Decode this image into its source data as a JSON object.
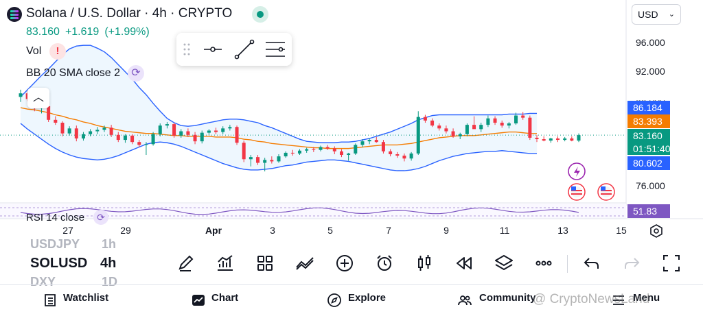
{
  "header": {
    "title": "Solana / U.S. Dollar · 4h · CRYPTO",
    "last_price": "83.160",
    "change": "+1.619",
    "change_pct": "(+1.99%)",
    "currency": "USD"
  },
  "indicators": {
    "vol_label": "Vol",
    "alert_glyph": "!",
    "bb_label": "BB 20 SMA close 2",
    "rsi_label": "RSI 14 close"
  },
  "price_axis": {
    "ticks": [
      {
        "label": "96.000",
        "value": 96
      },
      {
        "label": "92.000",
        "value": 92
      },
      {
        "label": "88.000",
        "value": 88
      },
      {
        "label": "76.000",
        "value": 76
      }
    ],
    "tags": [
      {
        "label": "86.184",
        "color": "#2962ff",
        "value": 86.184,
        "name": "bb-upper-tag"
      },
      {
        "label": "83.393",
        "color": "#f57c00",
        "value": 83.393,
        "name": "bb-basis-tag"
      },
      {
        "label": "83.160",
        "sub": "01:51:40",
        "color": "#089981",
        "value": 83.16,
        "name": "last-price-tag"
      },
      {
        "label": "80.602",
        "color": "#2962ff",
        "value": 80.602,
        "name": "bb-lower-tag"
      }
    ],
    "rsi_tag": {
      "label": "51.83",
      "color": "#7e57c2"
    }
  },
  "time_axis": [
    "27",
    "29",
    "Apr",
    "3",
    "5",
    "7",
    "9",
    "11",
    "13",
    "15"
  ],
  "chart_data": {
    "type": "candlestick",
    "title": "Solana / U.S. Dollar · 4h · CRYPTO",
    "ylim": [
      74,
      98
    ],
    "x_ticks": [
      "27",
      "29",
      "Apr",
      "3",
      "5",
      "7",
      "9",
      "11",
      "13",
      "15"
    ],
    "series": [
      {
        "name": "BB 20 SMA close 2 upper",
        "values": [
          88.5,
          89.5,
          90.5,
          91.5,
          92.4,
          93.4,
          94.4,
          95.2,
          95.6,
          95.7,
          95.7,
          95.3,
          94.8,
          94.0,
          93.0,
          92.0,
          91.0,
          89.8,
          88.8,
          87.6,
          86.5,
          85.5,
          84.9,
          84.5,
          84.4,
          84.5,
          84.7,
          84.9,
          85.1,
          85.3,
          85.4,
          85.4,
          85.3,
          85.1,
          84.9,
          84.5,
          84.2,
          83.8,
          83.4,
          83.0,
          82.6,
          82.3,
          82.2,
          82.1,
          82.1,
          82.1,
          82.2,
          82.2,
          82.3,
          82.5,
          82.7,
          83.0,
          83.3,
          83.6,
          84.0,
          84.4,
          84.8,
          85.3,
          85.6,
          85.9,
          86.0,
          86.0,
          86.0,
          86.0,
          86.0,
          86.0,
          86.0,
          86.0,
          86.0,
          86.0,
          86.1,
          86.1,
          86.1,
          86.2,
          86.2
        ]
      },
      {
        "name": "BB 20 SMA close 2 basis",
        "values": [
          87.0,
          86.8,
          86.7,
          86.5,
          86.3,
          86.0,
          85.8,
          85.5,
          85.3,
          85.0,
          84.8,
          84.5,
          84.3,
          84.1,
          83.9,
          83.7,
          83.6,
          83.5,
          83.4,
          83.4,
          83.3,
          83.2,
          83.1,
          83.1,
          83.0,
          83.0,
          83.0,
          83.0,
          82.9,
          82.9,
          82.9,
          82.8,
          82.6,
          82.5,
          82.3,
          82.2,
          82.0,
          81.9,
          81.8,
          81.7,
          81.6,
          81.5,
          81.4,
          81.4,
          81.3,
          81.3,
          81.3,
          81.3,
          81.4,
          81.5,
          81.6,
          81.7,
          81.8,
          81.8,
          81.8,
          81.9,
          82.0,
          82.2,
          82.4,
          82.6,
          82.8,
          82.9,
          83.0,
          83.1,
          83.1,
          83.1,
          83.2,
          83.3,
          83.4,
          83.5,
          83.6,
          83.6,
          83.5,
          83.4,
          83.39
        ]
      },
      {
        "name": "BB 20 SMA close 2 lower",
        "values": [
          84.8,
          84.0,
          83.3,
          82.6,
          81.9,
          81.3,
          80.8,
          80.4,
          80.1,
          79.9,
          79.8,
          79.7,
          79.8,
          80.0,
          80.3,
          80.7,
          81.1,
          81.5,
          81.9,
          82.1,
          82.2,
          82.1,
          81.9,
          81.6,
          81.2,
          80.8,
          80.4,
          80.0,
          79.6,
          79.2,
          78.9,
          78.6,
          78.4,
          78.3,
          78.3,
          78.4,
          78.5,
          78.7,
          78.9,
          79.0,
          79.2,
          79.4,
          79.5,
          79.6,
          79.7,
          79.7,
          79.6,
          79.5,
          79.3,
          79.1,
          78.9,
          78.7,
          78.5,
          78.3,
          78.2,
          78.2,
          78.3,
          78.5,
          78.8,
          79.2,
          79.6,
          79.9,
          80.2,
          80.4,
          80.6,
          80.7,
          80.8,
          80.9,
          80.9,
          81.0,
          80.9,
          80.8,
          80.7,
          80.6,
          80.6
        ]
      }
    ],
    "candles": [
      {
        "o": 88.5,
        "h": 89.5,
        "l": 87.8,
        "c": 89.0
      },
      {
        "o": 89.0,
        "h": 89.3,
        "l": 87.9,
        "c": 88.2
      },
      {
        "o": 88.2,
        "h": 88.6,
        "l": 86.5,
        "c": 86.9
      },
      {
        "o": 86.9,
        "h": 87.5,
        "l": 86.2,
        "c": 87.2
      },
      {
        "o": 87.2,
        "h": 87.6,
        "l": 85.0,
        "c": 85.3
      },
      {
        "o": 85.3,
        "h": 85.8,
        "l": 84.6,
        "c": 84.9
      },
      {
        "o": 84.9,
        "h": 85.1,
        "l": 83.0,
        "c": 83.4
      },
      {
        "o": 83.4,
        "h": 84.4,
        "l": 83.1,
        "c": 84.1
      },
      {
        "o": 84.1,
        "h": 84.5,
        "l": 82.3,
        "c": 82.7
      },
      {
        "o": 82.7,
        "h": 83.6,
        "l": 82.4,
        "c": 83.3
      },
      {
        "o": 83.3,
        "h": 84.0,
        "l": 83.0,
        "c": 83.7
      },
      {
        "o": 83.7,
        "h": 84.3,
        "l": 83.3,
        "c": 83.9
      },
      {
        "o": 83.9,
        "h": 84.5,
        "l": 83.6,
        "c": 84.2
      },
      {
        "o": 84.2,
        "h": 84.6,
        "l": 82.9,
        "c": 83.2
      },
      {
        "o": 83.2,
        "h": 83.6,
        "l": 82.2,
        "c": 82.5
      },
      {
        "o": 82.5,
        "h": 83.3,
        "l": 82.1,
        "c": 83.1
      },
      {
        "o": 83.1,
        "h": 83.3,
        "l": 81.9,
        "c": 82.2
      },
      {
        "o": 82.2,
        "h": 82.5,
        "l": 81.5,
        "c": 81.8
      },
      {
        "o": 81.8,
        "h": 82.2,
        "l": 80.4,
        "c": 81.9
      },
      {
        "o": 81.9,
        "h": 83.6,
        "l": 81.7,
        "c": 83.3
      },
      {
        "o": 83.3,
        "h": 84.8,
        "l": 83.0,
        "c": 84.5
      },
      {
        "o": 84.5,
        "h": 85.0,
        "l": 84.1,
        "c": 84.7
      },
      {
        "o": 84.7,
        "h": 84.9,
        "l": 82.8,
        "c": 83.1
      },
      {
        "o": 83.1,
        "h": 84.0,
        "l": 82.8,
        "c": 83.7
      },
      {
        "o": 83.7,
        "h": 84.1,
        "l": 82.9,
        "c": 83.2
      },
      {
        "o": 83.2,
        "h": 83.6,
        "l": 81.9,
        "c": 82.3
      },
      {
        "o": 82.3,
        "h": 83.8,
        "l": 82.0,
        "c": 83.5
      },
      {
        "o": 83.5,
        "h": 84.0,
        "l": 83.2,
        "c": 83.8
      },
      {
        "o": 83.8,
        "h": 84.2,
        "l": 83.3,
        "c": 83.6
      },
      {
        "o": 83.6,
        "h": 84.4,
        "l": 83.3,
        "c": 84.1
      },
      {
        "o": 84.1,
        "h": 84.6,
        "l": 83.8,
        "c": 84.3
      },
      {
        "o": 84.3,
        "h": 84.5,
        "l": 81.8,
        "c": 82.1
      },
      {
        "o": 82.1,
        "h": 82.4,
        "l": 79.4,
        "c": 79.8
      },
      {
        "o": 79.8,
        "h": 80.4,
        "l": 78.8,
        "c": 80.1
      },
      {
        "o": 80.1,
        "h": 80.4,
        "l": 79.0,
        "c": 79.3
      },
      {
        "o": 79.3,
        "h": 80.0,
        "l": 78.1,
        "c": 79.7
      },
      {
        "o": 79.7,
        "h": 80.2,
        "l": 79.2,
        "c": 79.5
      },
      {
        "o": 79.5,
        "h": 80.5,
        "l": 79.3,
        "c": 80.2
      },
      {
        "o": 80.2,
        "h": 80.9,
        "l": 80.0,
        "c": 80.7
      },
      {
        "o": 80.7,
        "h": 81.1,
        "l": 80.3,
        "c": 80.6
      },
      {
        "o": 80.6,
        "h": 81.2,
        "l": 80.4,
        "c": 81.0
      },
      {
        "o": 81.0,
        "h": 81.4,
        "l": 80.7,
        "c": 81.2
      },
      {
        "o": 81.2,
        "h": 81.5,
        "l": 80.8,
        "c": 81.1
      },
      {
        "o": 81.1,
        "h": 81.7,
        "l": 80.9,
        "c": 81.5
      },
      {
        "o": 81.5,
        "h": 81.8,
        "l": 81.1,
        "c": 81.3
      },
      {
        "o": 81.3,
        "h": 81.6,
        "l": 80.5,
        "c": 80.9
      },
      {
        "o": 80.9,
        "h": 81.2,
        "l": 80.1,
        "c": 80.4
      },
      {
        "o": 80.4,
        "h": 80.7,
        "l": 79.6,
        "c": 80.6
      },
      {
        "o": 80.6,
        "h": 82.0,
        "l": 80.4,
        "c": 81.8
      },
      {
        "o": 81.8,
        "h": 82.6,
        "l": 81.5,
        "c": 82.3
      },
      {
        "o": 82.3,
        "h": 82.7,
        "l": 81.9,
        "c": 82.5
      },
      {
        "o": 82.5,
        "h": 82.9,
        "l": 82.1,
        "c": 82.2
      },
      {
        "o": 82.2,
        "h": 82.5,
        "l": 80.6,
        "c": 80.9
      },
      {
        "o": 80.9,
        "h": 81.2,
        "l": 80.2,
        "c": 80.5
      },
      {
        "o": 80.5,
        "h": 80.8,
        "l": 80.0,
        "c": 80.3
      },
      {
        "o": 80.3,
        "h": 80.6,
        "l": 79.5,
        "c": 79.9
      },
      {
        "o": 79.9,
        "h": 80.8,
        "l": 79.6,
        "c": 80.6
      },
      {
        "o": 80.6,
        "h": 86.5,
        "l": 80.4,
        "c": 85.7
      },
      {
        "o": 85.7,
        "h": 86.0,
        "l": 84.9,
        "c": 85.2
      },
      {
        "o": 85.2,
        "h": 85.5,
        "l": 84.3,
        "c": 84.5
      },
      {
        "o": 84.5,
        "h": 84.8,
        "l": 83.8,
        "c": 84.1
      },
      {
        "o": 84.1,
        "h": 84.5,
        "l": 83.4,
        "c": 83.7
      },
      {
        "o": 83.7,
        "h": 84.1,
        "l": 82.8,
        "c": 83.0
      },
      {
        "o": 83.0,
        "h": 83.5,
        "l": 82.6,
        "c": 83.3
      },
      {
        "o": 83.3,
        "h": 84.8,
        "l": 83.0,
        "c": 84.6
      },
      {
        "o": 84.6,
        "h": 85.8,
        "l": 84.2,
        "c": 84.0
      },
      {
        "o": 84.0,
        "h": 84.9,
        "l": 83.6,
        "c": 84.6
      },
      {
        "o": 84.6,
        "h": 85.9,
        "l": 84.3,
        "c": 85.5
      },
      {
        "o": 85.5,
        "h": 85.8,
        "l": 84.6,
        "c": 84.9
      },
      {
        "o": 84.9,
        "h": 85.2,
        "l": 84.2,
        "c": 84.5
      },
      {
        "o": 84.5,
        "h": 85.0,
        "l": 84.1,
        "c": 84.8
      },
      {
        "o": 84.8,
        "h": 86.3,
        "l": 84.6,
        "c": 85.9
      },
      {
        "o": 85.9,
        "h": 86.4,
        "l": 85.3,
        "c": 85.6
      },
      {
        "o": 85.6,
        "h": 85.9,
        "l": 82.5,
        "c": 82.8
      },
      {
        "o": 82.8,
        "h": 83.2,
        "l": 82.2,
        "c": 82.6
      },
      {
        "o": 82.6,
        "h": 83.0,
        "l": 82.3,
        "c": 82.4
      },
      {
        "o": 82.4,
        "h": 82.8,
        "l": 82.1,
        "c": 82.7
      },
      {
        "o": 82.7,
        "h": 83.0,
        "l": 82.2,
        "c": 82.5
      },
      {
        "o": 82.5,
        "h": 82.9,
        "l": 82.3,
        "c": 82.7
      },
      {
        "o": 82.7,
        "h": 83.0,
        "l": 82.3,
        "c": 82.4
      },
      {
        "o": 82.4,
        "h": 83.4,
        "l": 82.2,
        "c": 83.16
      }
    ],
    "rsi": {
      "name": "RSI 14 close",
      "last": 51.83
    }
  },
  "bottom_toolbar": {
    "symbols": [
      "USDJPY",
      "SOLUSD",
      "DXY"
    ],
    "intervals": [
      "1h",
      "4h",
      "1D"
    ],
    "icons": [
      "pencil-icon",
      "indicators-icon",
      "layouts-icon",
      "compare-icon",
      "add-icon",
      "alarm-icon",
      "candles-icon",
      "replay-icon",
      "layers-icon",
      "more-icon",
      "undo-icon",
      "redo-icon",
      "fullscreen-icon"
    ]
  },
  "bottom_nav": {
    "watchlist": "Watchlist",
    "chart": "Chart",
    "explore": "Explore",
    "community": "Community",
    "menu": "Menu"
  },
  "watermark": "@ CryptoNewsLand"
}
